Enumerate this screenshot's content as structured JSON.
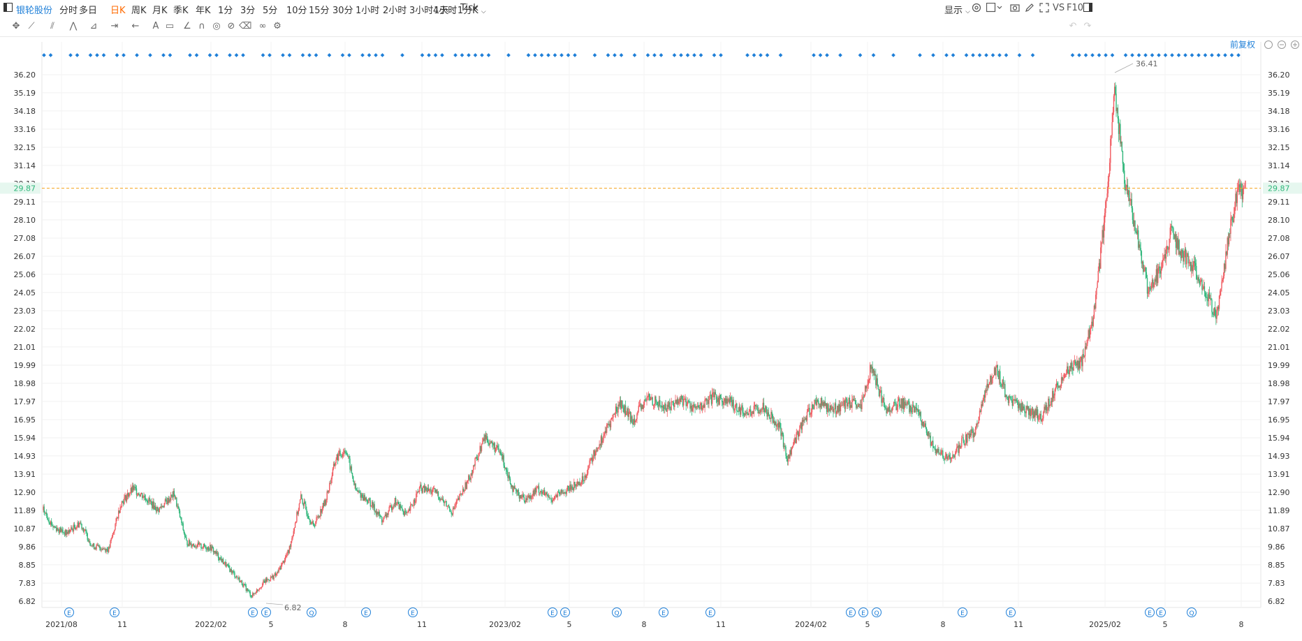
{
  "topbar": {
    "stock_name": "银轮股份",
    "periods": [
      "分时",
      "多日",
      "日K",
      "周K",
      "月K",
      "季K",
      "年K",
      "1分",
      "3分",
      "5分",
      "10分",
      "15分",
      "30分",
      "1小时",
      "2小时",
      "3小时",
      "4小时",
      "Tick"
    ],
    "active_period": "日K",
    "interval_select": "1天 : 1分K",
    "display_label": "显示",
    "vs_label": "VS",
    "f10_label": "F10"
  },
  "adjust_label": "前复权",
  "colors": {
    "up": "#f0595f",
    "down": "#2fb67a",
    "active": "#ff6a00",
    "link": "#1e7fd8",
    "current_line": "#f5a623"
  },
  "chart_data": {
    "type": "candlestick",
    "y_ticks": [
      "36.20",
      "35.19",
      "34.18",
      "33.16",
      "32.15",
      "31.14",
      "30.13",
      "29.11",
      "28.10",
      "27.08",
      "26.07",
      "25.06",
      "24.05",
      "23.03",
      "22.02",
      "21.01",
      "19.99",
      "18.98",
      "17.97",
      "16.95",
      "15.94",
      "14.93",
      "13.91",
      "12.90",
      "11.89",
      "10.87",
      "9.86",
      "8.85",
      "7.83",
      "6.82"
    ],
    "ylim": [
      6.82,
      36.2
    ],
    "x_ticks": [
      "2021/08",
      "11",
      "2022/02",
      "5",
      "8",
      "11",
      "2023/02",
      "5",
      "8",
      "11",
      "2024/02",
      "5",
      "8",
      "11",
      "2025/02",
      "5",
      "8"
    ],
    "current_price": "29.87",
    "max_label": "36.41",
    "min_label": "6.82",
    "event_markers": [
      "E",
      "E",
      "E",
      "E",
      "Q",
      "E",
      "E",
      "E",
      "E",
      "Q",
      "E",
      "E",
      "E",
      "E",
      "Q",
      "E",
      "E",
      "E",
      "E",
      "Q"
    ],
    "close_path": [
      [
        0,
        11.9
      ],
      [
        12,
        11.0
      ],
      [
        28,
        10.6
      ],
      [
        45,
        11.2
      ],
      [
        60,
        9.9
      ],
      [
        80,
        9.7
      ],
      [
        95,
        12.3
      ],
      [
        110,
        13.1
      ],
      [
        125,
        12.6
      ],
      [
        140,
        11.9
      ],
      [
        160,
        12.8
      ],
      [
        175,
        10.1
      ],
      [
        190,
        9.9
      ],
      [
        205,
        9.8
      ],
      [
        220,
        9.0
      ],
      [
        240,
        8.0
      ],
      [
        255,
        7.1
      ],
      [
        270,
        7.9
      ],
      [
        285,
        8.3
      ],
      [
        300,
        9.6
      ],
      [
        315,
        12.6
      ],
      [
        330,
        11.0
      ],
      [
        345,
        12.4
      ],
      [
        358,
        14.8
      ],
      [
        370,
        15.3
      ],
      [
        382,
        13.0
      ],
      [
        400,
        12.3
      ],
      [
        415,
        11.3
      ],
      [
        430,
        12.4
      ],
      [
        445,
        11.6
      ],
      [
        460,
        13.1
      ],
      [
        480,
        12.9
      ],
      [
        500,
        11.8
      ],
      [
        520,
        13.6
      ],
      [
        540,
        16.0
      ],
      [
        560,
        15.0
      ],
      [
        575,
        13.0
      ],
      [
        590,
        12.5
      ],
      [
        605,
        13.1
      ],
      [
        620,
        12.5
      ],
      [
        640,
        13.0
      ],
      [
        660,
        13.6
      ],
      [
        675,
        15.2
      ],
      [
        690,
        16.5
      ],
      [
        705,
        17.9
      ],
      [
        720,
        16.9
      ],
      [
        740,
        18.2
      ],
      [
        760,
        17.6
      ],
      [
        780,
        18.1
      ],
      [
        800,
        17.5
      ],
      [
        820,
        18.2
      ],
      [
        840,
        17.9
      ],
      [
        860,
        17.3
      ],
      [
        880,
        17.7
      ],
      [
        900,
        16.6
      ],
      [
        910,
        14.7
      ],
      [
        925,
        16.5
      ],
      [
        945,
        18.0
      ],
      [
        965,
        17.5
      ],
      [
        985,
        17.9
      ],
      [
        1000,
        17.6
      ],
      [
        1012,
        19.9
      ],
      [
        1030,
        17.5
      ],
      [
        1050,
        17.9
      ],
      [
        1070,
        17.3
      ],
      [
        1090,
        15.2
      ],
      [
        1110,
        14.7
      ],
      [
        1125,
        15.8
      ],
      [
        1140,
        16.3
      ],
      [
        1150,
        18.3
      ],
      [
        1165,
        19.9
      ],
      [
        1180,
        18.0
      ],
      [
        1200,
        17.6
      ],
      [
        1220,
        17.1
      ],
      [
        1235,
        18.4
      ],
      [
        1250,
        19.6
      ],
      [
        1270,
        20.2
      ],
      [
        1285,
        22.9
      ],
      [
        1300,
        29.2
      ],
      [
        1310,
        35.4
      ],
      [
        1322,
        30.4
      ],
      [
        1335,
        27.8
      ],
      [
        1350,
        24.3
      ],
      [
        1365,
        25.2
      ],
      [
        1380,
        27.5
      ],
      [
        1392,
        26.2
      ],
      [
        1405,
        25.6
      ],
      [
        1420,
        24.1
      ],
      [
        1435,
        22.7
      ],
      [
        1450,
        27.3
      ],
      [
        1460,
        29.5
      ],
      [
        1470,
        29.9
      ]
    ]
  }
}
